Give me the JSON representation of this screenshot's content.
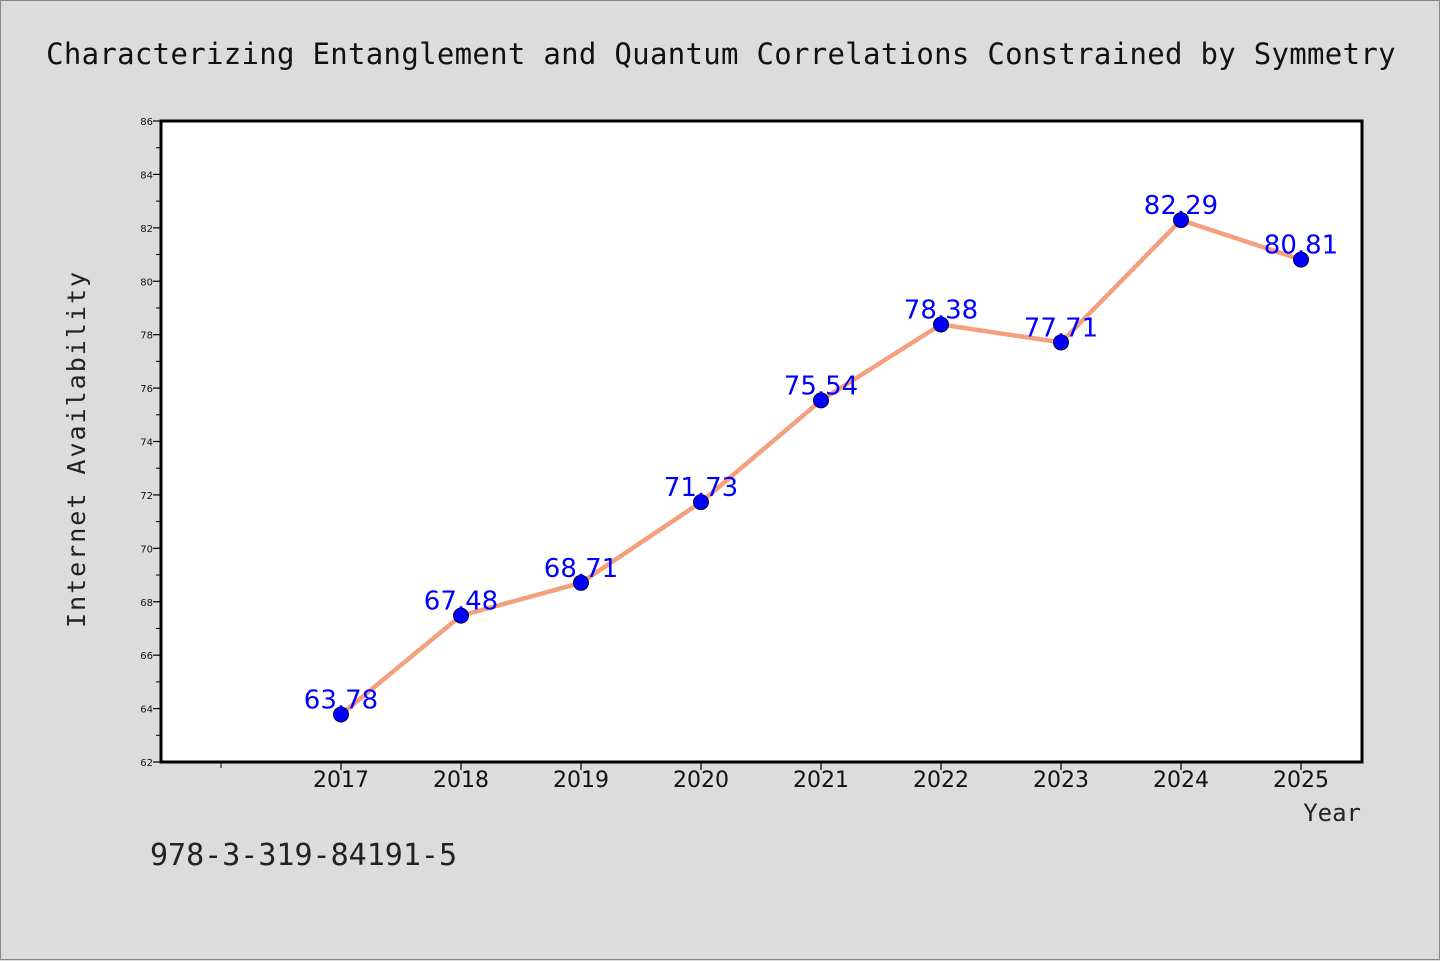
{
  "chart_data": {
    "type": "line",
    "title": "Characterizing Entanglement and Quantum Correlations Constrained by Symmetry",
    "xlabel": "Year",
    "ylabel": "Internet Availability",
    "categories": [
      "2017",
      "2018",
      "2019",
      "2020",
      "2021",
      "2022",
      "2023",
      "2024",
      "2025"
    ],
    "series": [
      {
        "values": [
          63.78,
          67.48,
          68.71,
          71.73,
          75.54,
          78.38,
          77.71,
          82.29,
          80.81
        ],
        "data_labels": [
          "63.78",
          "67.48",
          "68.71",
          "71.73",
          "75.54",
          "78.38",
          "77.71",
          "82.29",
          "80.81"
        ]
      }
    ],
    "ylim": [
      62,
      86
    ],
    "yticks": [
      "62",
      "64",
      "66",
      "68",
      "70",
      "72",
      "74",
      "76",
      "78",
      "80",
      "82",
      "84",
      "86"
    ],
    "grid": false,
    "legend": "none",
    "colors": {
      "line": "#f4a07e",
      "marker": "#0000ff",
      "data_label": "#0000ff",
      "plot_background": "#ffffff",
      "figure_background": "#dcdcdc"
    }
  },
  "footer": {
    "isbn": "978-3-319-84191-5"
  }
}
